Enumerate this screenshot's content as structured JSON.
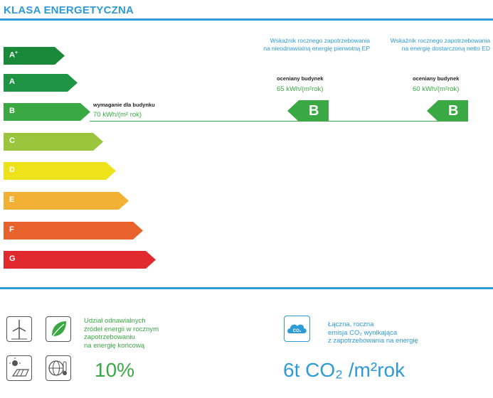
{
  "title": "KLASA ENERGETYCZNA",
  "classes": [
    {
      "label": "A",
      "sup": "+",
      "color": "#1a8a3a"
    },
    {
      "label": "A",
      "sup": "",
      "color": "#1f9444"
    },
    {
      "label": "B",
      "sup": "",
      "color": "#3aa843"
    },
    {
      "label": "C",
      "sup": "",
      "color": "#9bc53d"
    },
    {
      "label": "D",
      "sup": "",
      "color": "#eee31a"
    },
    {
      "label": "E",
      "sup": "",
      "color": "#f2b134"
    },
    {
      "label": "F",
      "sup": "",
      "color": "#e8622c"
    },
    {
      "label": "G",
      "sup": "",
      "color": "#e02a2f"
    }
  ],
  "column_ep": {
    "header_line1": "Wskaźnik rocznego zapotrzebowania",
    "header_line2": "na nieodnawialną energię pierwotną EP",
    "building_label": "oceniany budynek",
    "value": "65 kWh/(m²rok)",
    "class": "B"
  },
  "column_ed": {
    "header_line1": "Wskaźnik rocznego zapotrzebowania",
    "header_line2": "na energię dostarczoną netto ED",
    "building_label": "oceniany budynek",
    "value": "60 kWh/(m²rok)",
    "class": "B"
  },
  "requirement": {
    "label": "wymaganie dla budynku",
    "value": "70 kWh/(m² rok)"
  },
  "renewable": {
    "line1": "Udział odnawialnych",
    "line2": "źródeł energii w rocznym",
    "line3": "zapotrzebowaniu",
    "line4": "na energię końcową",
    "value": "10%"
  },
  "co2": {
    "icon_text": "CO₂",
    "line1": "Łączna, roczna",
    "line2": "emisja CO₂ wynikająca",
    "line3": "z zapotrzebowania na energię",
    "value": "6t CO₂ /m²rok"
  },
  "icons": [
    "wind-turbine-icon",
    "leaf-icon",
    "solar-panel-icon",
    "globe-thermometer-icon",
    "cloud-co2-icon"
  ]
}
